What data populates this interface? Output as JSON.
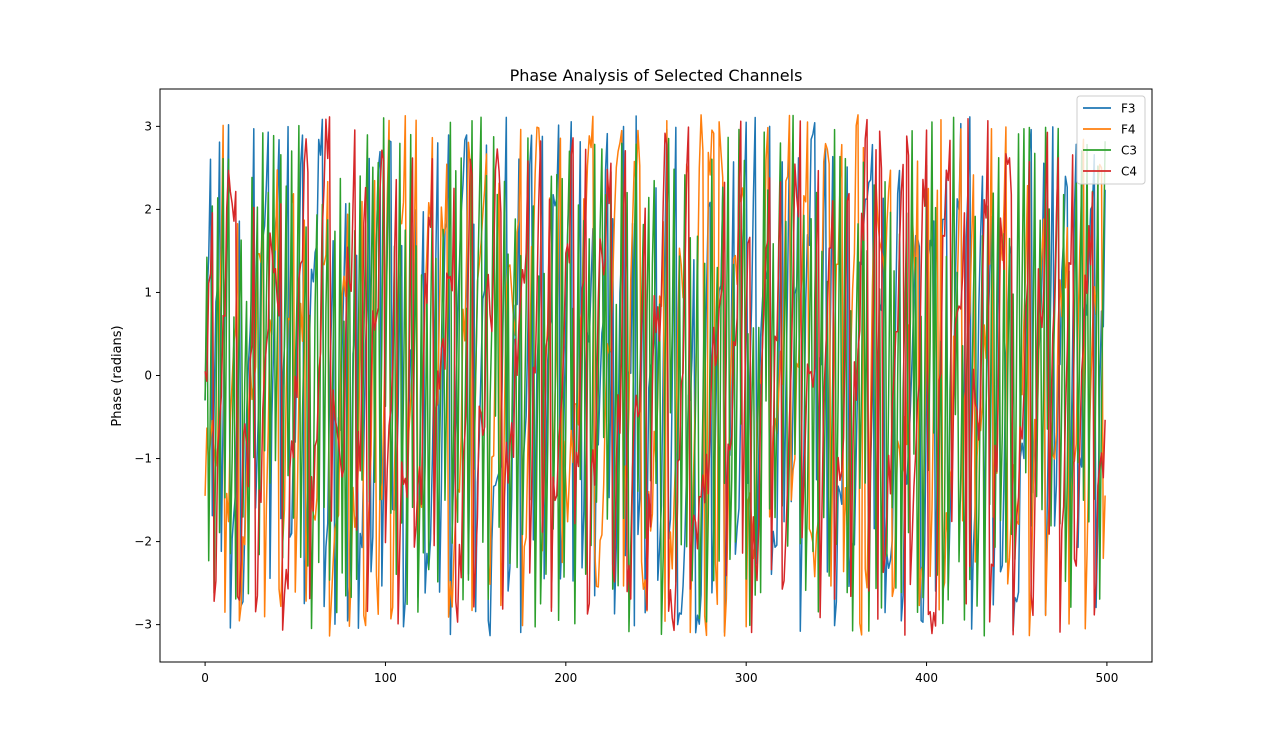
{
  "chart_data": {
    "type": "line",
    "title": "Phase Analysis of Selected Channels",
    "xlabel": "",
    "ylabel": "Phase (radians)",
    "xlim": [
      -25,
      525
    ],
    "ylim": [
      -3.45,
      3.45
    ],
    "xticks": [
      0,
      100,
      200,
      300,
      400,
      500
    ],
    "yticks": [
      -3,
      -2,
      -1,
      0,
      1,
      2,
      3
    ],
    "grid": false,
    "legend": "top-right",
    "series": [
      {
        "name": "F3",
        "color": "#1f77b4",
        "freq": 0.9,
        "phase0": -0.3
      },
      {
        "name": "F4",
        "color": "#ff7f0e",
        "freq": 0.6,
        "phase0": -1.45
      },
      {
        "name": "C3",
        "color": "#2ca02c",
        "freq": 2.0,
        "phase0": -0.3
      },
      {
        "name": "C4",
        "color": "#d62728",
        "freq": 0.6,
        "phase0": 0.05
      }
    ],
    "n_points": 500
  }
}
